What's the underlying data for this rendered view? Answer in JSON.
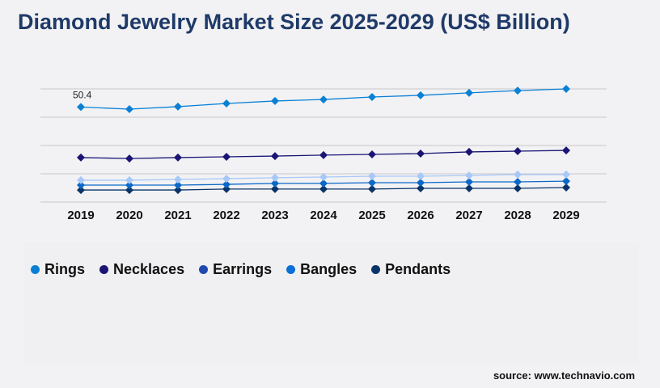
{
  "title": "Diamond Jewelry Market Size 2025-2029 (US$ Billion)",
  "source": "source: www.technavio.com",
  "chart_data": {
    "type": "line",
    "title": "Diamond Jewelry Market Size 2025-2029 (US$ Billion)",
    "categories": [
      "2019",
      "2020",
      "2021",
      "2022",
      "2023",
      "2024",
      "2025",
      "2026",
      "2027",
      "2028",
      "2029"
    ],
    "ylim": [
      0,
      60
    ],
    "grid": true,
    "legend": "bottom-left",
    "annotations": [
      {
        "series": "Rings",
        "category": "2019",
        "text": "50.4"
      }
    ],
    "series": [
      {
        "name": "Rings",
        "color": "#0a80d5",
        "legend_color": "#0a80d5",
        "values": [
          50.4,
          49.3,
          50.6,
          52.3,
          53.6,
          54.4,
          55.7,
          56.6,
          57.9,
          59.1,
          60.0
        ]
      },
      {
        "name": "Necklaces",
        "color": "#1a1575",
        "legend_color": "#1a1575",
        "values": [
          23.6,
          23.1,
          23.6,
          24.0,
          24.4,
          24.9,
          25.3,
          25.7,
          26.6,
          27.0,
          27.4
        ]
      },
      {
        "name": "Earrings",
        "color": "#a8c8f8",
        "legend_color": "#1f48b0",
        "values": [
          11.6,
          11.6,
          12.0,
          12.4,
          12.9,
          13.3,
          13.7,
          13.7,
          14.1,
          14.6,
          14.6
        ]
      },
      {
        "name": "Bangles",
        "color": "#0a68c8",
        "legend_color": "#0a6fd6",
        "values": [
          9.0,
          9.0,
          9.0,
          9.4,
          9.9,
          9.9,
          10.3,
          10.3,
          10.7,
          10.7,
          11.1
        ]
      },
      {
        "name": "Pendants",
        "color": "#0a3468",
        "legend_color": "#0a3468",
        "values": [
          6.4,
          6.4,
          6.4,
          6.9,
          6.9,
          6.9,
          6.9,
          7.3,
          7.3,
          7.3,
          7.7
        ]
      }
    ]
  }
}
